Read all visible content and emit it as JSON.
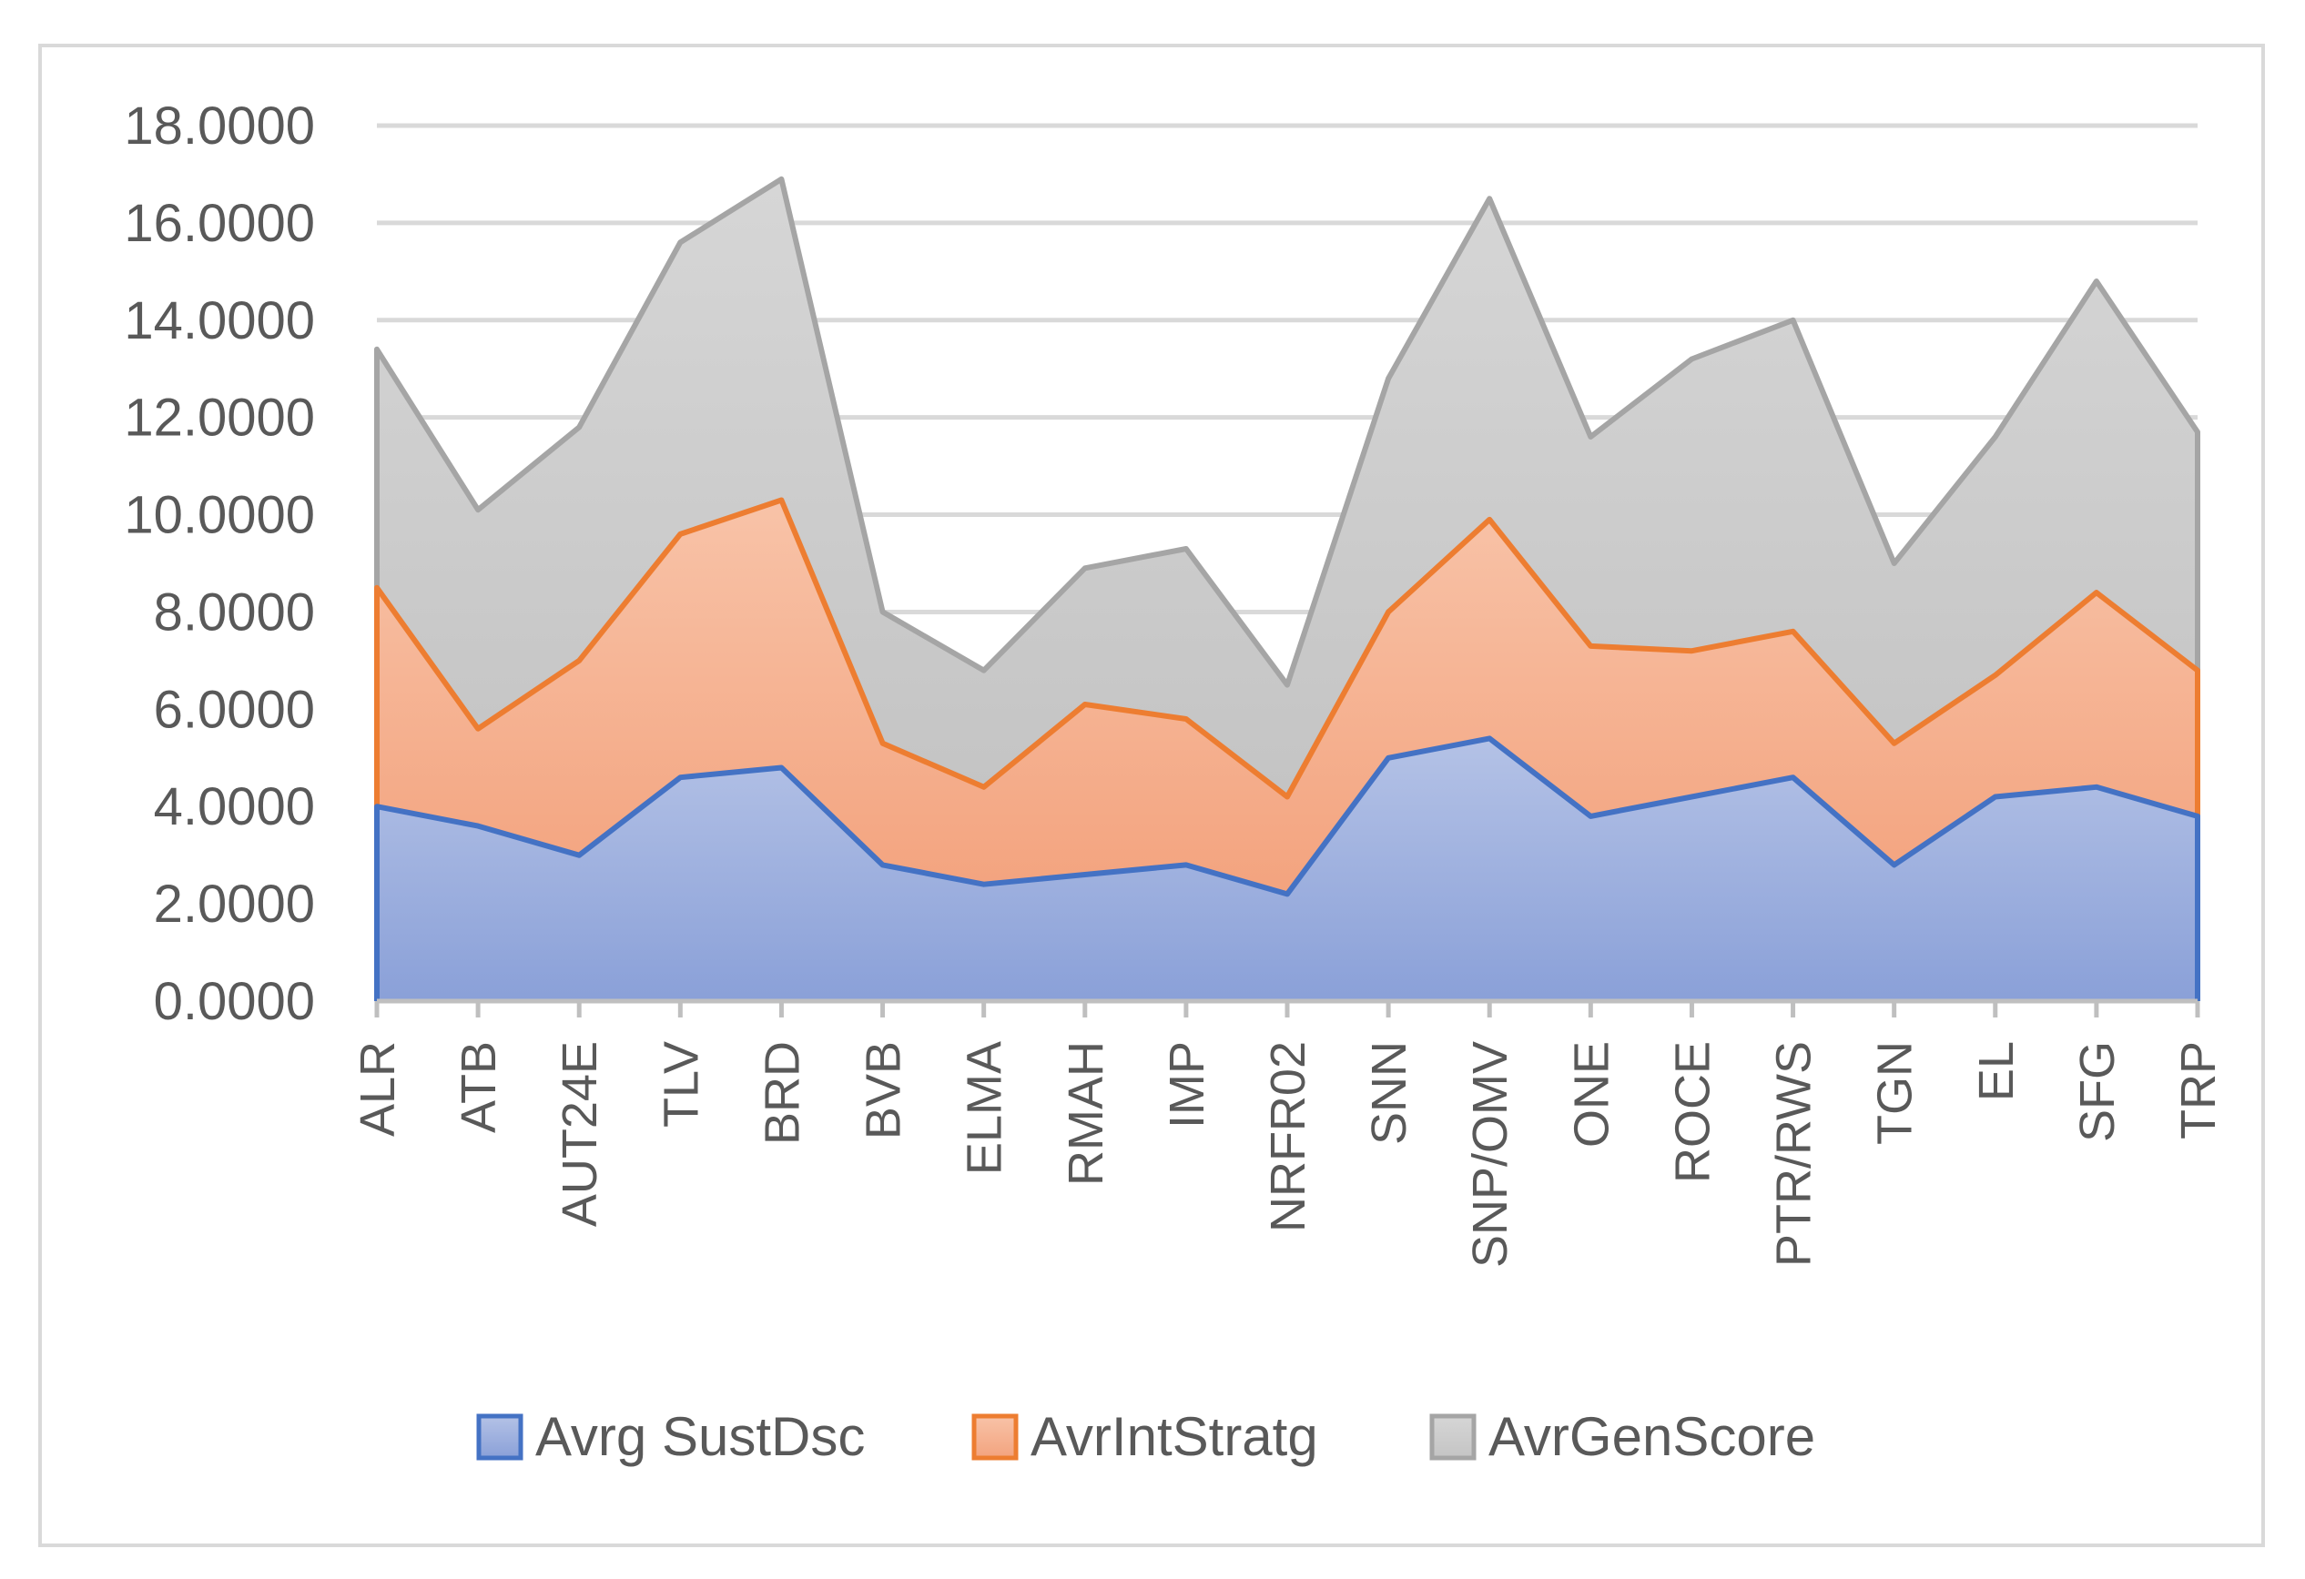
{
  "chart_data": {
    "type": "area",
    "stacked": true,
    "categories": [
      "ALR",
      "ATB",
      "AUT24E",
      "TLV",
      "BRD",
      "BVB",
      "ELMA",
      "RMAH",
      "IMP",
      "NRFR02",
      "SNN",
      "SNP/OMV",
      "ONE",
      "ROCE",
      "PTR/RWS",
      "TGN",
      "EL",
      "SFG",
      "TRP"
    ],
    "series": [
      {
        "name": "Avrg SustDsc",
        "color": "#4472c4",
        "values": [
          4.0,
          3.6,
          3.0,
          4.6,
          4.8,
          2.8,
          2.4,
          2.6,
          2.8,
          2.2,
          5.0,
          5.4,
          3.8,
          4.2,
          4.6,
          2.8,
          4.2,
          4.4,
          3.8
        ]
      },
      {
        "name": "AvrIntStratg",
        "color": "#ed7d31",
        "values": [
          4.5,
          2.0,
          4.0,
          5.0,
          5.5,
          2.5,
          2.0,
          3.5,
          3.0,
          2.0,
          3.0,
          4.5,
          3.5,
          3.0,
          3.0,
          2.5,
          2.5,
          4.0,
          3.0
        ]
      },
      {
        "name": "AvrGenScore",
        "color": "#a5a5a5",
        "values": [
          4.9,
          4.5,
          4.8,
          6.0,
          6.6,
          2.7,
          2.4,
          2.8,
          3.5,
          2.3,
          4.8,
          6.6,
          4.3,
          6.0,
          6.4,
          3.7,
          4.9,
          6.4,
          4.9
        ]
      }
    ],
    "y_ticks": [
      "0.0000",
      "2.0000",
      "4.0000",
      "6.0000",
      "8.0000",
      "10.0000",
      "12.0000",
      "14.0000",
      "16.0000",
      "18.0000"
    ],
    "ylim": [
      0,
      18
    ],
    "grid": true,
    "legend_position": "bottom"
  }
}
